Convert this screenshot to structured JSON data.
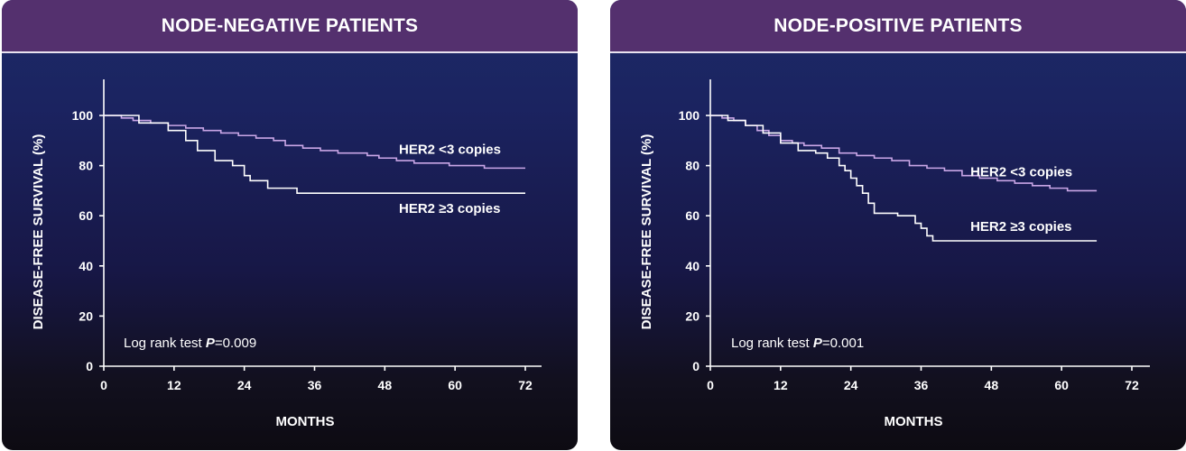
{
  "chart_data": [
    {
      "type": "line",
      "title": "NODE-NEGATIVE PATIENTS",
      "xlabel": "MONTHS",
      "ylabel": "DISEASE-FREE SURVIVAL (%)",
      "xlim": [
        0,
        72
      ],
      "ylim": [
        0,
        100
      ],
      "xticks": [
        0,
        12,
        24,
        36,
        48,
        60,
        72
      ],
      "yticks": [
        0,
        20,
        40,
        60,
        80,
        100
      ],
      "annotation": {
        "text": "Log rank test ",
        "p_label": "P",
        "p_value": "=0.009"
      },
      "series": [
        {
          "name": "HER2 <3 copies",
          "color": "#c9a6e6",
          "step": true,
          "x": [
            0,
            3,
            5,
            8,
            11,
            14,
            17,
            20,
            23,
            26,
            29,
            31,
            34,
            37,
            40,
            43,
            45,
            47,
            50,
            53,
            56,
            59,
            62,
            65,
            72
          ],
          "y": [
            100,
            99,
            98,
            97,
            96,
            95,
            94,
            93,
            92,
            91,
            90,
            88,
            87,
            86,
            85,
            85,
            84,
            83,
            82,
            81,
            81,
            80,
            80,
            79,
            79
          ]
        },
        {
          "name": "HER2 ≥3 copies",
          "color": "#ffffff",
          "step": true,
          "x": [
            0,
            6,
            11,
            14,
            16,
            19,
            22,
            24,
            25,
            28,
            33,
            72
          ],
          "y": [
            100,
            97,
            94,
            90,
            86,
            82,
            80,
            76,
            74,
            71,
            69,
            69
          ]
        }
      ]
    },
    {
      "type": "line",
      "title": "NODE-POSITIVE PATIENTS",
      "xlabel": "MONTHS",
      "ylabel": "DISEASE-FREE SURVIVAL (%)",
      "xlim": [
        0,
        72
      ],
      "ylim": [
        0,
        100
      ],
      "xticks": [
        0,
        12,
        24,
        36,
        48,
        60,
        72
      ],
      "yticks": [
        0,
        20,
        40,
        60,
        80,
        100
      ],
      "annotation": {
        "text": "Log rank test ",
        "p_label": "P",
        "p_value": "=0.001"
      },
      "series": [
        {
          "name": "HER2 <3 copies",
          "color": "#c9a6e6",
          "step": true,
          "x": [
            0,
            2,
            4,
            6,
            8,
            10,
            12,
            14,
            16,
            19,
            22,
            25,
            28,
            31,
            34,
            37,
            40,
            43,
            46,
            49,
            52,
            55,
            58,
            61,
            66
          ],
          "y": [
            100,
            99,
            98,
            96,
            94,
            92,
            90,
            89,
            88,
            87,
            85,
            84,
            83,
            82,
            80,
            79,
            78,
            76,
            75,
            74,
            73,
            72,
            71,
            70,
            70
          ]
        },
        {
          "name": "HER2 ≥3 copies",
          "color": "#ffffff",
          "step": true,
          "x": [
            0,
            3,
            6,
            9,
            12,
            15,
            18,
            20,
            22,
            23,
            24,
            25,
            26,
            27,
            28,
            32,
            35,
            36,
            37,
            38,
            66
          ],
          "y": [
            100,
            98,
            96,
            93,
            89,
            86,
            85,
            83,
            80,
            78,
            75,
            72,
            69,
            65,
            61,
            60,
            57,
            55,
            52,
            50,
            50
          ]
        }
      ]
    }
  ]
}
